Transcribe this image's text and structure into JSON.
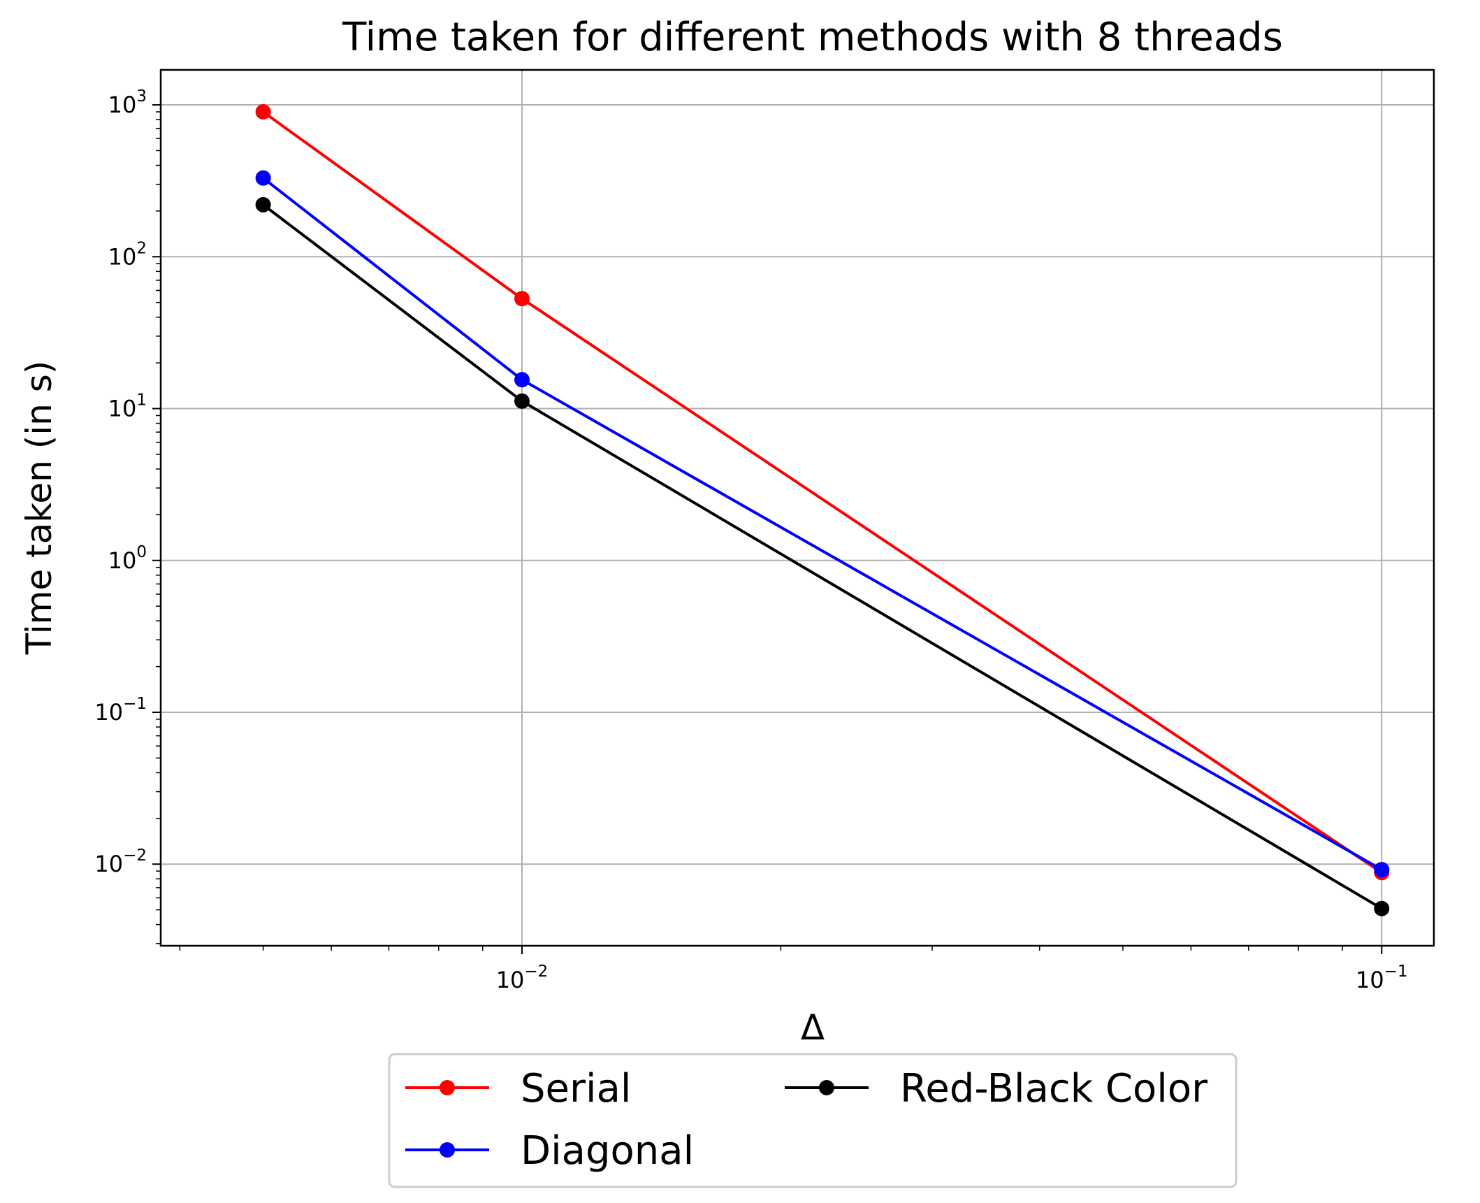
{
  "chart_data": {
    "type": "line",
    "title": "Time taken for different methods with 8 threads",
    "xlabel": "Δ",
    "ylabel": "Time taken (in s)",
    "xscale": "log",
    "yscale": "log",
    "xlim": [
      0.0038,
      0.115
    ],
    "ylim": [
      0.0029,
      1700
    ],
    "grid": true,
    "legend_position": "below-center",
    "x": [
      0.005,
      0.01,
      0.1
    ],
    "x_ticks": [
      {
        "value": 0.01,
        "base": "10",
        "exp": "−2"
      },
      {
        "value": 0.1,
        "base": "10",
        "exp": "−1"
      }
    ],
    "y_ticks": [
      {
        "value": 1000,
        "base": "10",
        "exp": "3"
      },
      {
        "value": 100,
        "base": "10",
        "exp": "2"
      },
      {
        "value": 10,
        "base": "10",
        "exp": "1"
      },
      {
        "value": 1,
        "base": "10",
        "exp": "0"
      },
      {
        "value": 0.1,
        "base": "10",
        "exp": "−1"
      },
      {
        "value": 0.01,
        "base": "10",
        "exp": "−2"
      }
    ],
    "series": [
      {
        "name": "Serial",
        "color": "#ff0000",
        "values": [
          900,
          53,
          0.0088
        ]
      },
      {
        "name": "Diagonal",
        "color": "#0000ff",
        "values": [
          330,
          15.5,
          0.0092
        ]
      },
      {
        "name": "Red-Black Color",
        "color": "#000000",
        "values": [
          220,
          11.2,
          0.0051
        ]
      }
    ]
  }
}
